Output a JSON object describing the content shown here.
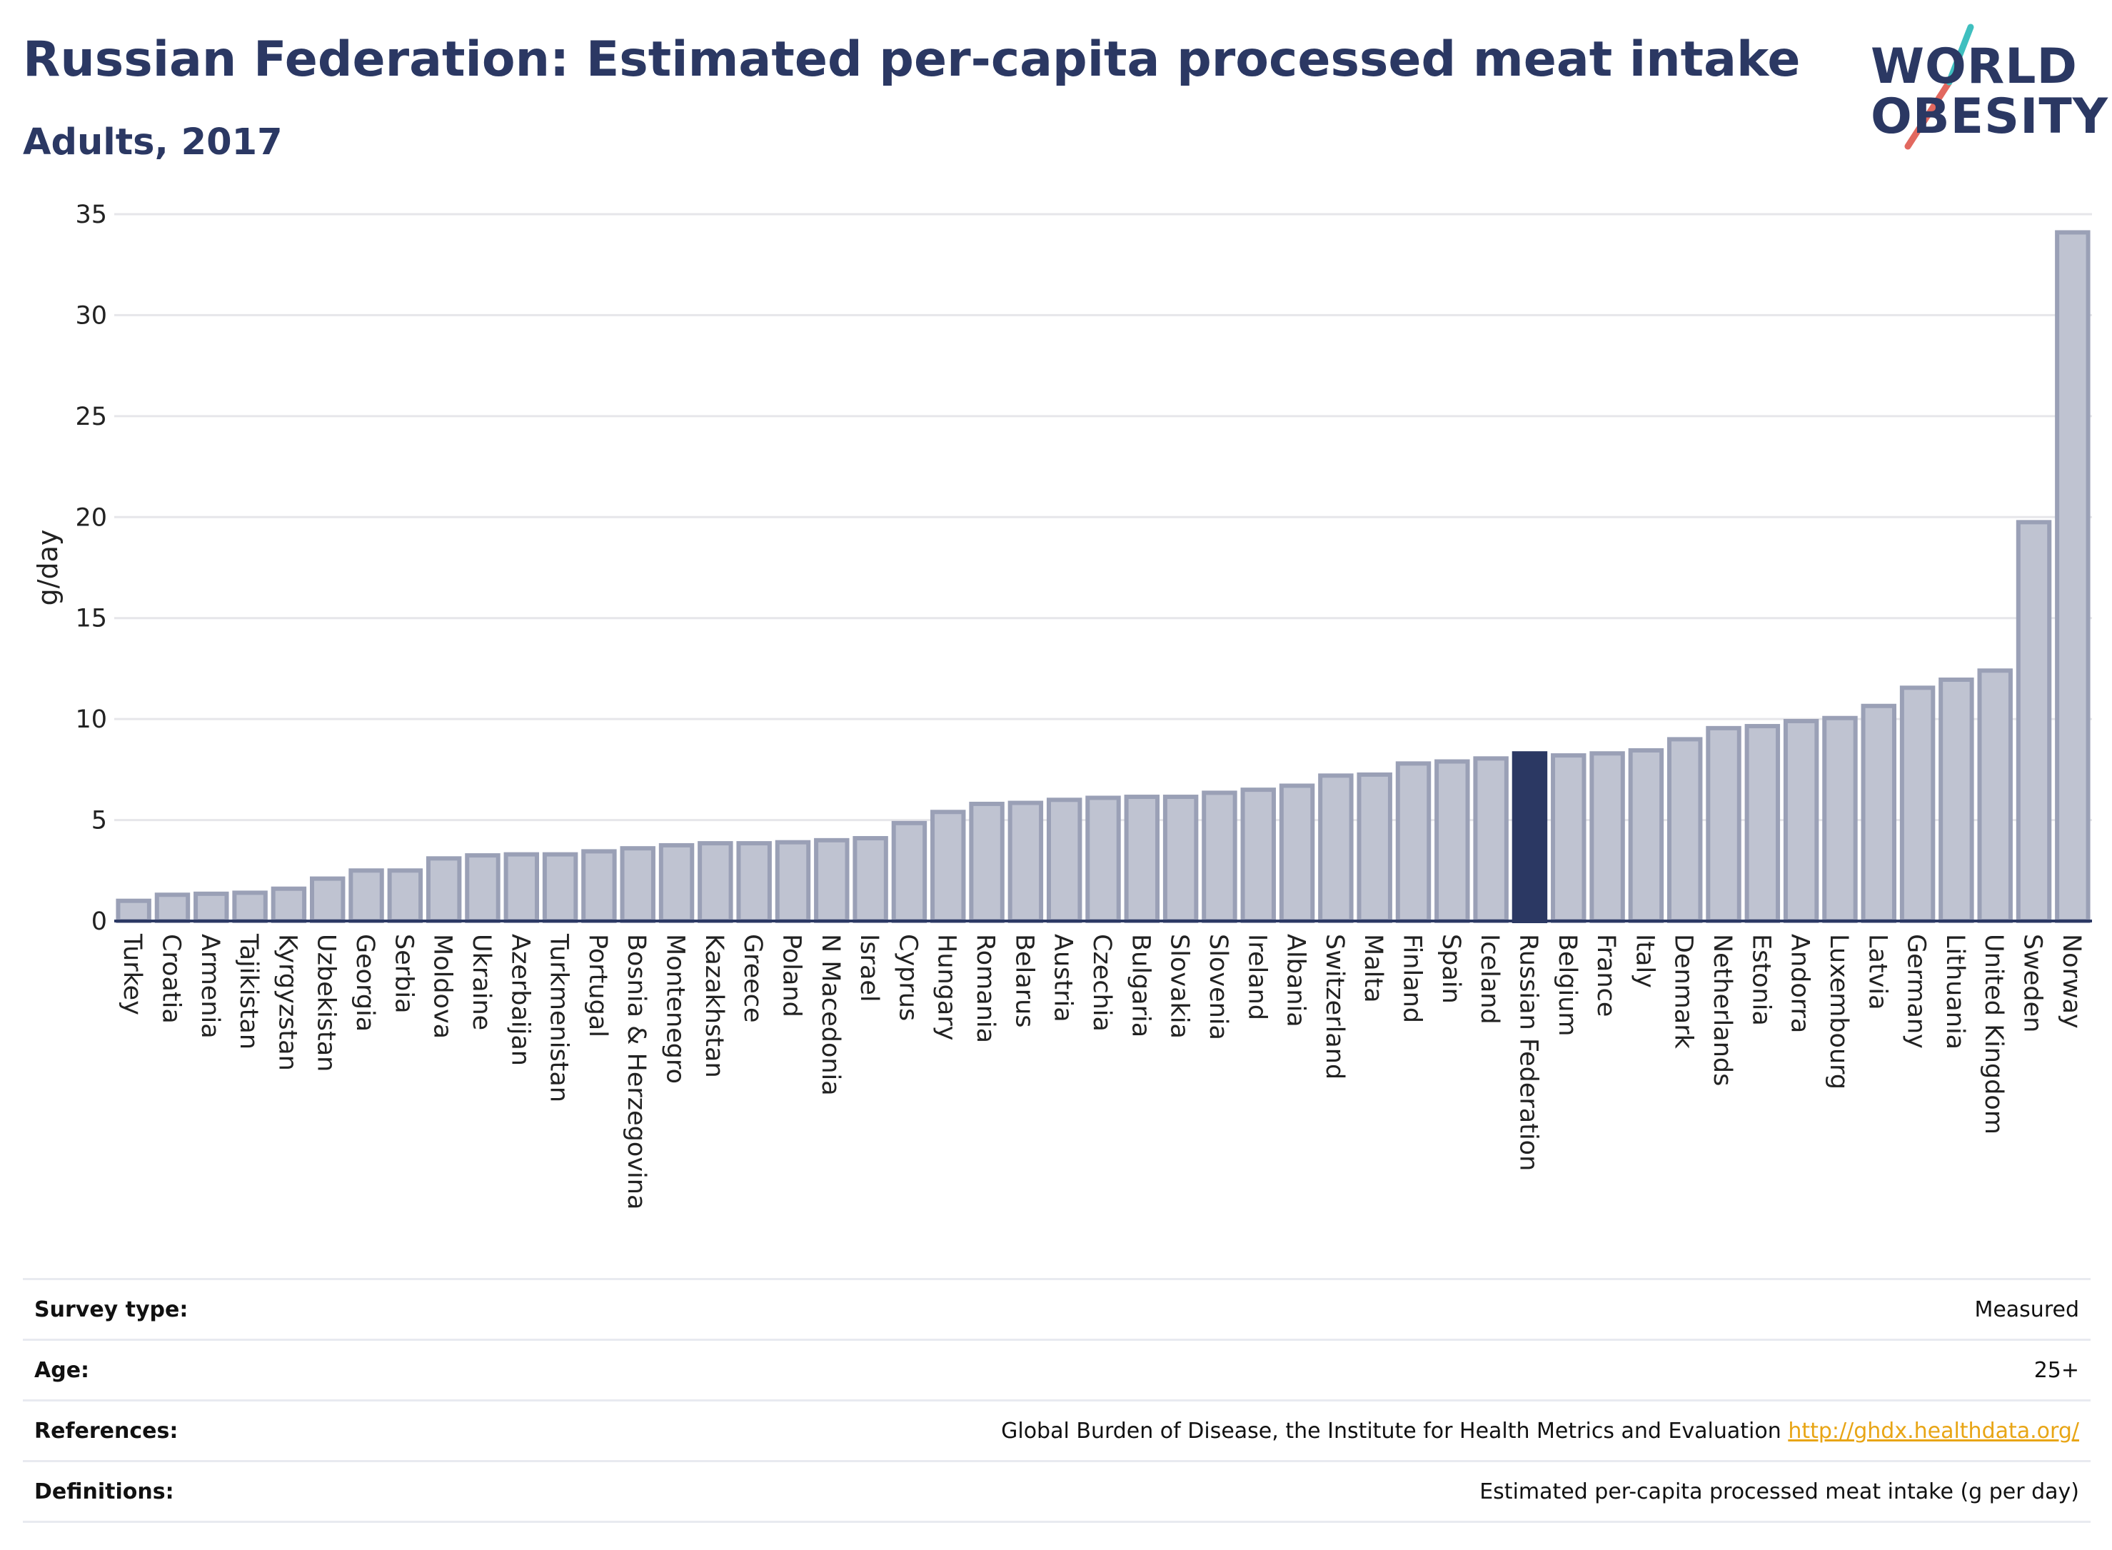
{
  "title": "Russian Federation: Estimated per-capita processed meat intake",
  "subtitle": "Adults, 2017",
  "logo": {
    "line1": "WORLD",
    "line2": "OBESITY"
  },
  "colors": {
    "bar_fill": "#bfc3d1",
    "bar_stroke": "#9aa0b6",
    "highlight": "#2b3863",
    "title": "#2b3863",
    "grid": "#e6e6ea",
    "link": "#e8a515",
    "logo_teal": "#3fbfbf",
    "logo_red": "#e2685f"
  },
  "chart_data": {
    "type": "bar",
    "ylabel": "g/day",
    "xlabel": "",
    "ylim": [
      0,
      35
    ],
    "yticks": [
      0,
      5,
      10,
      15,
      20,
      25,
      30,
      35
    ],
    "grid": true,
    "highlight": "Russian Federation",
    "categories": [
      "Turkey",
      "Croatia",
      "Armenia",
      "Tajikistan",
      "Kyrgyzstan",
      "Uzbekistan",
      "Georgia",
      "Serbia",
      "Moldova",
      "Ukraine",
      "Azerbaijan",
      "Turkmenistan",
      "Portugal",
      "Bosnia & Herzegovina",
      "Montenegro",
      "Kazakhstan",
      "Greece",
      "Poland",
      "N Macedonia",
      "Israel",
      "Cyprus",
      "Hungary",
      "Romania",
      "Belarus",
      "Austria",
      "Czechia",
      "Bulgaria",
      "Slovakia",
      "Slovenia",
      "Ireland",
      "Albania",
      "Switzerland",
      "Malta",
      "Finland",
      "Spain",
      "Iceland",
      "Russian Federation",
      "Belgium",
      "France",
      "Italy",
      "Denmark",
      "Netherlands",
      "Estonia",
      "Andorra",
      "Luxembourg",
      "Latvia",
      "Germany",
      "Lithuania",
      "United Kingdom",
      "Sweden",
      "Norway"
    ],
    "values": [
      1.0,
      1.3,
      1.35,
      1.4,
      1.6,
      2.1,
      2.5,
      2.5,
      3.1,
      3.25,
      3.3,
      3.3,
      3.45,
      3.6,
      3.75,
      3.85,
      3.85,
      3.9,
      4.0,
      4.1,
      4.85,
      5.4,
      5.8,
      5.85,
      6.0,
      6.1,
      6.15,
      6.15,
      6.35,
      6.5,
      6.7,
      7.2,
      7.25,
      7.8,
      7.9,
      8.05,
      8.3,
      8.2,
      8.3,
      8.45,
      9.0,
      9.55,
      9.65,
      9.9,
      10.05,
      10.65,
      11.55,
      11.95,
      12.4,
      19.75,
      34.1
    ]
  },
  "info": {
    "survey_type": {
      "label": "Survey type:",
      "value": "Measured"
    },
    "age": {
      "label": "Age:",
      "value": "25+"
    },
    "references": {
      "label": "References:",
      "value": "Global Burden of Disease, the Institute for Health Metrics and Evaluation",
      "link": "http://ghdx.healthdata.org/"
    },
    "definitions": {
      "label": "Definitions:",
      "value": "Estimated per-capita processed meat intake (g per day)"
    }
  }
}
